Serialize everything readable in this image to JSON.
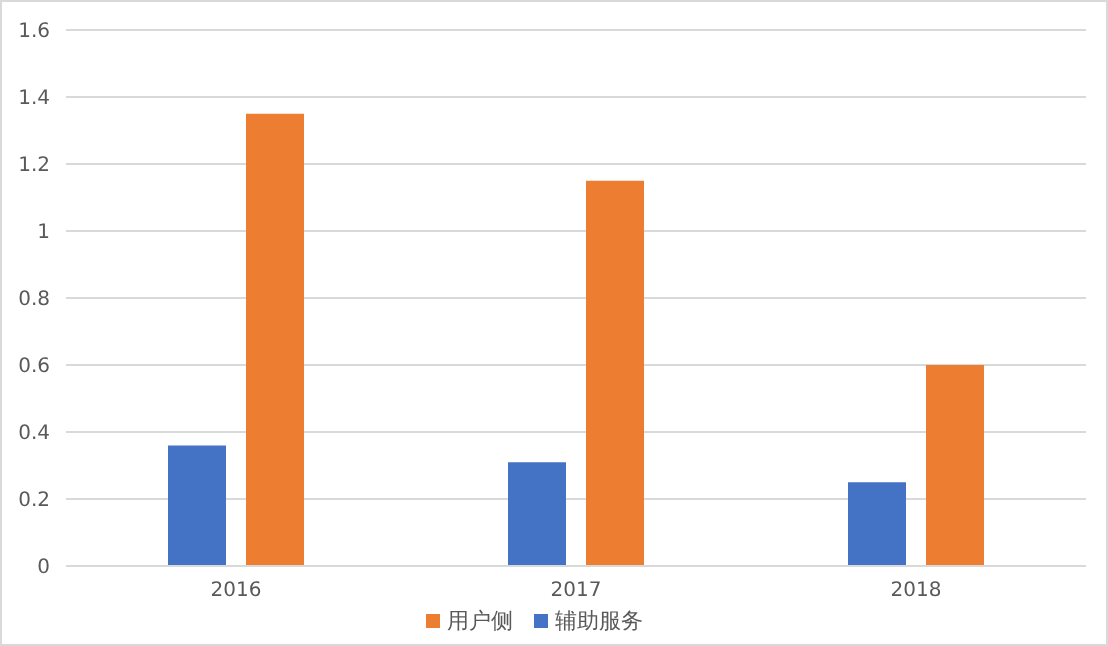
{
  "chart_data": {
    "type": "bar",
    "categories": [
      "2016",
      "2017",
      "2018"
    ],
    "series": [
      {
        "name": "辅助服务",
        "color": "#4472c4",
        "values": [
          0.36,
          0.31,
          0.25
        ]
      },
      {
        "name": "用户侧",
        "color": "#ed7d31",
        "values": [
          1.35,
          1.15,
          0.6
        ]
      }
    ],
    "ylim": [
      0,
      1.6
    ],
    "yticks": [
      0,
      0.2,
      0.4,
      0.6,
      0.8,
      1,
      1.2,
      1.4,
      1.6
    ],
    "grid": "y",
    "legend": "bottom"
  }
}
